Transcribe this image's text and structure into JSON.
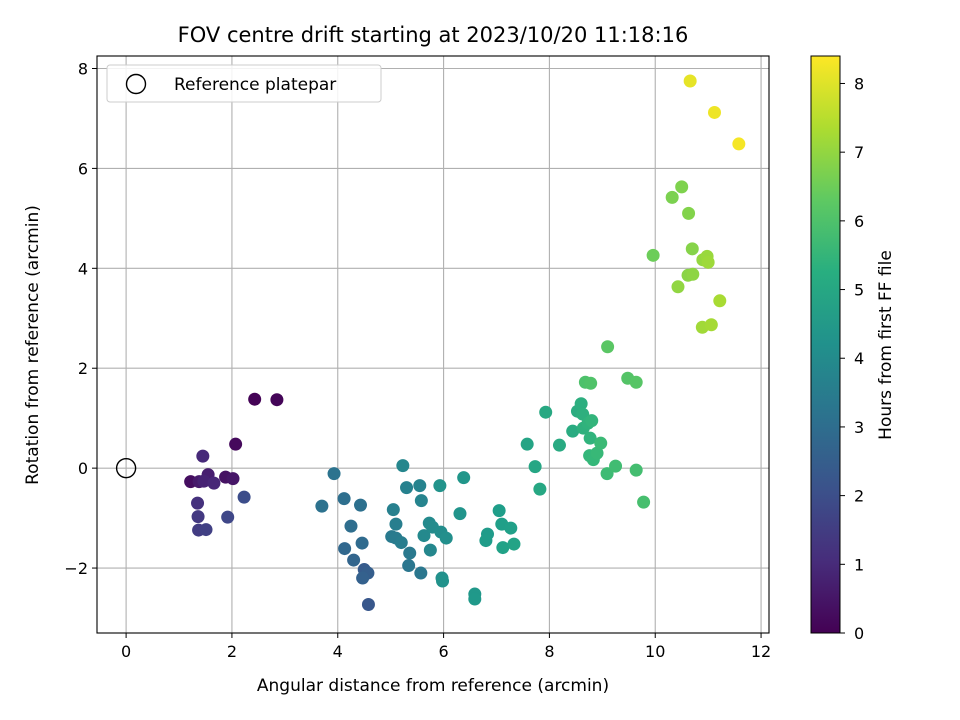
{
  "chart_data": {
    "type": "scatter",
    "title": "FOV centre drift starting at 2023/10/20 11:18:16",
    "xlabel": "Angular distance from reference (arcmin)",
    "ylabel": "Rotation from reference (arcmin)",
    "xlim": [
      -0.55,
      12.15
    ],
    "ylim": [
      -3.3,
      8.25
    ],
    "xticks": [
      0,
      2,
      4,
      6,
      8,
      10,
      12
    ],
    "yticks": [
      -2,
      0,
      2,
      4,
      6,
      8
    ],
    "grid": true,
    "legend": {
      "entries": [
        "Reference platepar"
      ],
      "placement": "upper-left"
    },
    "reference_point": {
      "x": 0,
      "y": 0
    },
    "colorbar": {
      "label": "Hours from first FF file",
      "colormap": "viridis",
      "range": [
        0,
        8.4
      ],
      "ticks": [
        0,
        1,
        2,
        3,
        4,
        5,
        6,
        7,
        8
      ]
    },
    "points": [
      {
        "x": 2.43,
        "y": 1.38,
        "c": 0.05
      },
      {
        "x": 2.85,
        "y": 1.37,
        "c": 0.1
      },
      {
        "x": 2.07,
        "y": 0.48,
        "c": 0.2
      },
      {
        "x": 1.22,
        "y": -0.27,
        "c": 0.3
      },
      {
        "x": 1.88,
        "y": -0.18,
        "c": 0.4
      },
      {
        "x": 2.02,
        "y": -0.21,
        "c": 0.5
      },
      {
        "x": 1.38,
        "y": -0.27,
        "c": 0.6
      },
      {
        "x": 1.55,
        "y": -0.13,
        "c": 0.7
      },
      {
        "x": 1.47,
        "y": -0.26,
        "c": 0.8
      },
      {
        "x": 1.66,
        "y": -0.3,
        "c": 0.9
      },
      {
        "x": 1.45,
        "y": 0.24,
        "c": 1.0
      },
      {
        "x": 1.35,
        "y": -0.7,
        "c": 1.2
      },
      {
        "x": 1.36,
        "y": -0.97,
        "c": 1.4
      },
      {
        "x": 1.37,
        "y": -1.24,
        "c": 1.5
      },
      {
        "x": 1.51,
        "y": -1.23,
        "c": 1.6
      },
      {
        "x": 1.92,
        "y": -0.98,
        "c": 1.8
      },
      {
        "x": 2.23,
        "y": -0.58,
        "c": 2.0
      },
      {
        "x": 4.58,
        "y": -2.73,
        "c": 2.3
      },
      {
        "x": 4.5,
        "y": -2.03,
        "c": 2.4
      },
      {
        "x": 4.57,
        "y": -2.1,
        "c": 2.5
      },
      {
        "x": 4.47,
        "y": -2.2,
        "c": 2.6
      },
      {
        "x": 4.3,
        "y": -1.84,
        "c": 2.7
      },
      {
        "x": 4.13,
        "y": -1.61,
        "c": 2.8
      },
      {
        "x": 4.46,
        "y": -1.5,
        "c": 2.9
      },
      {
        "x": 4.25,
        "y": -1.16,
        "c": 3.0
      },
      {
        "x": 4.12,
        "y": -0.61,
        "c": 3.05
      },
      {
        "x": 4.43,
        "y": -0.74,
        "c": 3.1
      },
      {
        "x": 3.7,
        "y": -0.76,
        "c": 3.15
      },
      {
        "x": 3.93,
        "y": -0.11,
        "c": 3.2
      },
      {
        "x": 5.34,
        "y": -1.95,
        "c": 3.3
      },
      {
        "x": 5.57,
        "y": -2.1,
        "c": 3.35
      },
      {
        "x": 5.36,
        "y": -1.7,
        "c": 3.4
      },
      {
        "x": 5.02,
        "y": -1.37,
        "c": 3.45
      },
      {
        "x": 5.1,
        "y": -1.4,
        "c": 3.5
      },
      {
        "x": 5.2,
        "y": -1.49,
        "c": 3.55
      },
      {
        "x": 5.1,
        "y": -1.12,
        "c": 3.6
      },
      {
        "x": 5.05,
        "y": -0.83,
        "c": 3.65
      },
      {
        "x": 5.3,
        "y": -0.39,
        "c": 3.7
      },
      {
        "x": 5.55,
        "y": -0.35,
        "c": 3.75
      },
      {
        "x": 5.58,
        "y": -0.65,
        "c": 3.8
      },
      {
        "x": 5.23,
        "y": 0.05,
        "c": 3.85
      },
      {
        "x": 5.75,
        "y": -1.64,
        "c": 3.9
      },
      {
        "x": 5.63,
        "y": -1.35,
        "c": 3.95
      },
      {
        "x": 5.73,
        "y": -1.1,
        "c": 4.0
      },
      {
        "x": 5.79,
        "y": -1.18,
        "c": 4.05
      },
      {
        "x": 5.95,
        "y": -1.28,
        "c": 4.1
      },
      {
        "x": 6.05,
        "y": -1.4,
        "c": 4.15
      },
      {
        "x": 5.97,
        "y": -2.2,
        "c": 4.2
      },
      {
        "x": 5.98,
        "y": -2.26,
        "c": 4.25
      },
      {
        "x": 5.93,
        "y": -0.35,
        "c": 4.3
      },
      {
        "x": 6.31,
        "y": -0.91,
        "c": 4.35
      },
      {
        "x": 6.38,
        "y": -0.19,
        "c": 4.4
      },
      {
        "x": 6.59,
        "y": -2.52,
        "c": 4.45
      },
      {
        "x": 6.59,
        "y": -2.62,
        "c": 4.5
      },
      {
        "x": 6.83,
        "y": -1.32,
        "c": 4.55
      },
      {
        "x": 6.8,
        "y": -1.45,
        "c": 4.6
      },
      {
        "x": 7.05,
        "y": -0.85,
        "c": 4.65
      },
      {
        "x": 7.1,
        "y": -1.12,
        "c": 4.7
      },
      {
        "x": 7.27,
        "y": -1.2,
        "c": 4.75
      },
      {
        "x": 7.12,
        "y": -1.59,
        "c": 4.8
      },
      {
        "x": 7.33,
        "y": -1.52,
        "c": 4.85
      },
      {
        "x": 7.58,
        "y": 0.48,
        "c": 4.9
      },
      {
        "x": 7.73,
        "y": 0.03,
        "c": 4.95
      },
      {
        "x": 7.82,
        "y": -0.42,
        "c": 5.0
      },
      {
        "x": 7.93,
        "y": 1.12,
        "c": 5.05
      },
      {
        "x": 8.19,
        "y": 0.46,
        "c": 5.1
      },
      {
        "x": 8.44,
        "y": 0.74,
        "c": 5.15
      },
      {
        "x": 8.53,
        "y": 1.14,
        "c": 5.2
      },
      {
        "x": 8.6,
        "y": 1.29,
        "c": 5.25
      },
      {
        "x": 8.63,
        "y": 1.08,
        "c": 5.3
      },
      {
        "x": 8.64,
        "y": 0.8,
        "c": 5.35
      },
      {
        "x": 8.73,
        "y": 0.9,
        "c": 5.4
      },
      {
        "x": 8.77,
        "y": 0.6,
        "c": 5.45
      },
      {
        "x": 8.8,
        "y": 0.95,
        "c": 5.5
      },
      {
        "x": 8.76,
        "y": 0.25,
        "c": 5.55
      },
      {
        "x": 8.83,
        "y": 0.17,
        "c": 5.6
      },
      {
        "x": 8.9,
        "y": 0.3,
        "c": 5.65
      },
      {
        "x": 8.97,
        "y": 0.5,
        "c": 5.7
      },
      {
        "x": 9.09,
        "y": -0.11,
        "c": 5.75
      },
      {
        "x": 9.25,
        "y": 0.04,
        "c": 5.8
      },
      {
        "x": 9.64,
        "y": -0.04,
        "c": 5.85
      },
      {
        "x": 9.78,
        "y": -0.68,
        "c": 5.9
      },
      {
        "x": 8.68,
        "y": 1.72,
        "c": 6.0
      },
      {
        "x": 8.78,
        "y": 1.7,
        "c": 6.05
      },
      {
        "x": 9.48,
        "y": 1.8,
        "c": 6.1
      },
      {
        "x": 9.64,
        "y": 1.72,
        "c": 6.15
      },
      {
        "x": 9.1,
        "y": 2.43,
        "c": 6.2
      },
      {
        "x": 9.96,
        "y": 4.26,
        "c": 6.5
      },
      {
        "x": 10.32,
        "y": 5.42,
        "c": 6.7
      },
      {
        "x": 10.5,
        "y": 5.63,
        "c": 6.75
      },
      {
        "x": 10.63,
        "y": 5.1,
        "c": 6.8
      },
      {
        "x": 10.7,
        "y": 4.39,
        "c": 6.85
      },
      {
        "x": 10.62,
        "y": 3.86,
        "c": 6.9
      },
      {
        "x": 10.71,
        "y": 3.88,
        "c": 6.95
      },
      {
        "x": 10.43,
        "y": 3.63,
        "c": 7.0
      },
      {
        "x": 10.9,
        "y": 4.17,
        "c": 7.05
      },
      {
        "x": 10.98,
        "y": 4.24,
        "c": 7.1
      },
      {
        "x": 11.0,
        "y": 4.12,
        "c": 7.15
      },
      {
        "x": 10.89,
        "y": 2.82,
        "c": 7.2
      },
      {
        "x": 11.06,
        "y": 2.87,
        "c": 7.25
      },
      {
        "x": 11.22,
        "y": 3.35,
        "c": 7.3
      },
      {
        "x": 10.66,
        "y": 7.75,
        "c": 8.1
      },
      {
        "x": 11.12,
        "y": 7.12,
        "c": 8.2
      },
      {
        "x": 11.58,
        "y": 6.49,
        "c": 8.3
      }
    ]
  }
}
